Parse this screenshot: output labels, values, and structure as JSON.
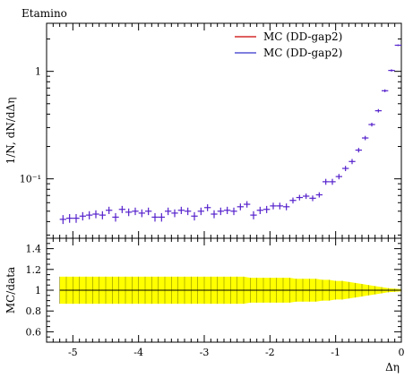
{
  "chart_data": [
    {
      "type": "scatter",
      "title": "Etamino",
      "ylabel": "1/N, dN/dΔη",
      "xlabel": "",
      "xlim": [
        -5.4,
        0
      ],
      "ylim": [
        0.028,
        2.8
      ],
      "y_scale": "log",
      "yticks": [
        {
          "value": 1,
          "label": "1"
        },
        {
          "value": 0.1,
          "label": "10⁻¹"
        }
      ],
      "legend": {
        "placement": "top-right",
        "entries": [
          {
            "label": "MC (DD-gap2)",
            "color": "#cc0000"
          },
          {
            "label": "MC (DD-gap2)",
            "color": "#3333cc"
          }
        ]
      },
      "marker_color": "#5522cc",
      "bin_half_width": 0.05,
      "series": [
        {
          "name": "MC (DD-gap2)",
          "x": [
            -5.15,
            -5.05,
            -4.95,
            -4.85,
            -4.75,
            -4.65,
            -4.55,
            -4.45,
            -4.35,
            -4.25,
            -4.15,
            -4.05,
            -3.95,
            -3.85,
            -3.75,
            -3.65,
            -3.55,
            -3.45,
            -3.35,
            -3.25,
            -3.15,
            -3.05,
            -2.95,
            -2.85,
            -2.75,
            -2.65,
            -2.55,
            -2.45,
            -2.35,
            -2.25,
            -2.15,
            -2.05,
            -1.95,
            -1.85,
            -1.75,
            -1.65,
            -1.55,
            -1.45,
            -1.35,
            -1.25,
            -1.15,
            -1.05,
            -0.95,
            -0.85,
            -0.75,
            -0.65,
            -0.55,
            -0.45,
            -0.35,
            -0.25,
            -0.15,
            -0.05
          ],
          "values": [
            0.042,
            0.043,
            0.043,
            0.045,
            0.046,
            0.047,
            0.046,
            0.051,
            0.044,
            0.052,
            0.049,
            0.05,
            0.048,
            0.05,
            0.044,
            0.044,
            0.05,
            0.048,
            0.051,
            0.05,
            0.045,
            0.05,
            0.054,
            0.047,
            0.05,
            0.051,
            0.05,
            0.055,
            0.058,
            0.046,
            0.051,
            0.052,
            0.056,
            0.056,
            0.055,
            0.063,
            0.067,
            0.069,
            0.066,
            0.071,
            0.094,
            0.094,
            0.105,
            0.125,
            0.145,
            0.185,
            0.24,
            0.32,
            0.43,
            0.66,
            1.02,
            1.75
          ],
          "err": [
            0.004,
            0.004,
            0.004,
            0.004,
            0.004,
            0.004,
            0.004,
            0.004,
            0.004,
            0.004,
            0.004,
            0.004,
            0.004,
            0.004,
            0.004,
            0.004,
            0.004,
            0.004,
            0.004,
            0.004,
            0.004,
            0.004,
            0.004,
            0.004,
            0.004,
            0.004,
            0.004,
            0.004,
            0.004,
            0.004,
            0.004,
            0.004,
            0.004,
            0.004,
            0.004,
            0.004,
            0.004,
            0.004,
            0.004,
            0.004,
            0.006,
            0.006,
            0.006,
            0.007,
            0.008,
            0.009,
            0.011,
            0.013,
            0.016,
            0.02,
            0.025,
            0.03
          ]
        }
      ]
    },
    {
      "type": "area",
      "title": "",
      "ylabel": "MC/data",
      "xlabel": "Δη",
      "xlim": [
        -5.4,
        0
      ],
      "ylim": [
        0.5,
        1.5
      ],
      "yticks": [
        {
          "value": 0.6,
          "label": "0.6"
        },
        {
          "value": 0.8,
          "label": "0.8"
        },
        {
          "value": 1,
          "label": "1"
        },
        {
          "value": 1.2,
          "label": "1.2"
        },
        {
          "value": 1.4,
          "label": "1.4"
        }
      ],
      "xticks": [
        {
          "value": -5,
          "label": "-5"
        },
        {
          "value": -4,
          "label": "-4"
        },
        {
          "value": -3,
          "label": "-3"
        },
        {
          "value": -2,
          "label": "-2"
        },
        {
          "value": -1,
          "label": "-1"
        },
        {
          "value": 0,
          "label": "0"
        }
      ],
      "band_color": "#ffff00",
      "ratio_value": 1,
      "series": [
        {
          "name": "MC (DD-gap2)",
          "x": [
            -5.2,
            -5.1,
            -5.0,
            -4.9,
            -4.8,
            -4.7,
            -4.6,
            -4.5,
            -4.4,
            -4.3,
            -4.2,
            -4.1,
            -4.0,
            -3.9,
            -3.8,
            -3.7,
            -3.6,
            -3.5,
            -3.4,
            -3.3,
            -3.2,
            -3.1,
            -3.0,
            -2.9,
            -2.8,
            -2.7,
            -2.6,
            -2.5,
            -2.4,
            -2.3,
            -2.2,
            -2.1,
            -2.0,
            -1.9,
            -1.8,
            -1.7,
            -1.6,
            -1.5,
            -1.4,
            -1.3,
            -1.2,
            -1.1,
            -1.0,
            -0.9,
            -0.8,
            -0.7,
            -0.6,
            -0.5,
            -0.4,
            -0.3,
            -0.2,
            -0.1,
            0.0
          ],
          "band_half_width": [
            0.13,
            0.13,
            0.13,
            0.13,
            0.13,
            0.13,
            0.13,
            0.13,
            0.13,
            0.13,
            0.13,
            0.13,
            0.13,
            0.13,
            0.13,
            0.13,
            0.13,
            0.13,
            0.13,
            0.13,
            0.13,
            0.13,
            0.13,
            0.13,
            0.13,
            0.13,
            0.13,
            0.13,
            0.13,
            0.12,
            0.12,
            0.12,
            0.12,
            0.12,
            0.12,
            0.12,
            0.11,
            0.11,
            0.11,
            0.11,
            0.1,
            0.1,
            0.09,
            0.09,
            0.08,
            0.07,
            0.06,
            0.05,
            0.04,
            0.03,
            0.02,
            0.015,
            0.01
          ]
        }
      ]
    }
  ]
}
